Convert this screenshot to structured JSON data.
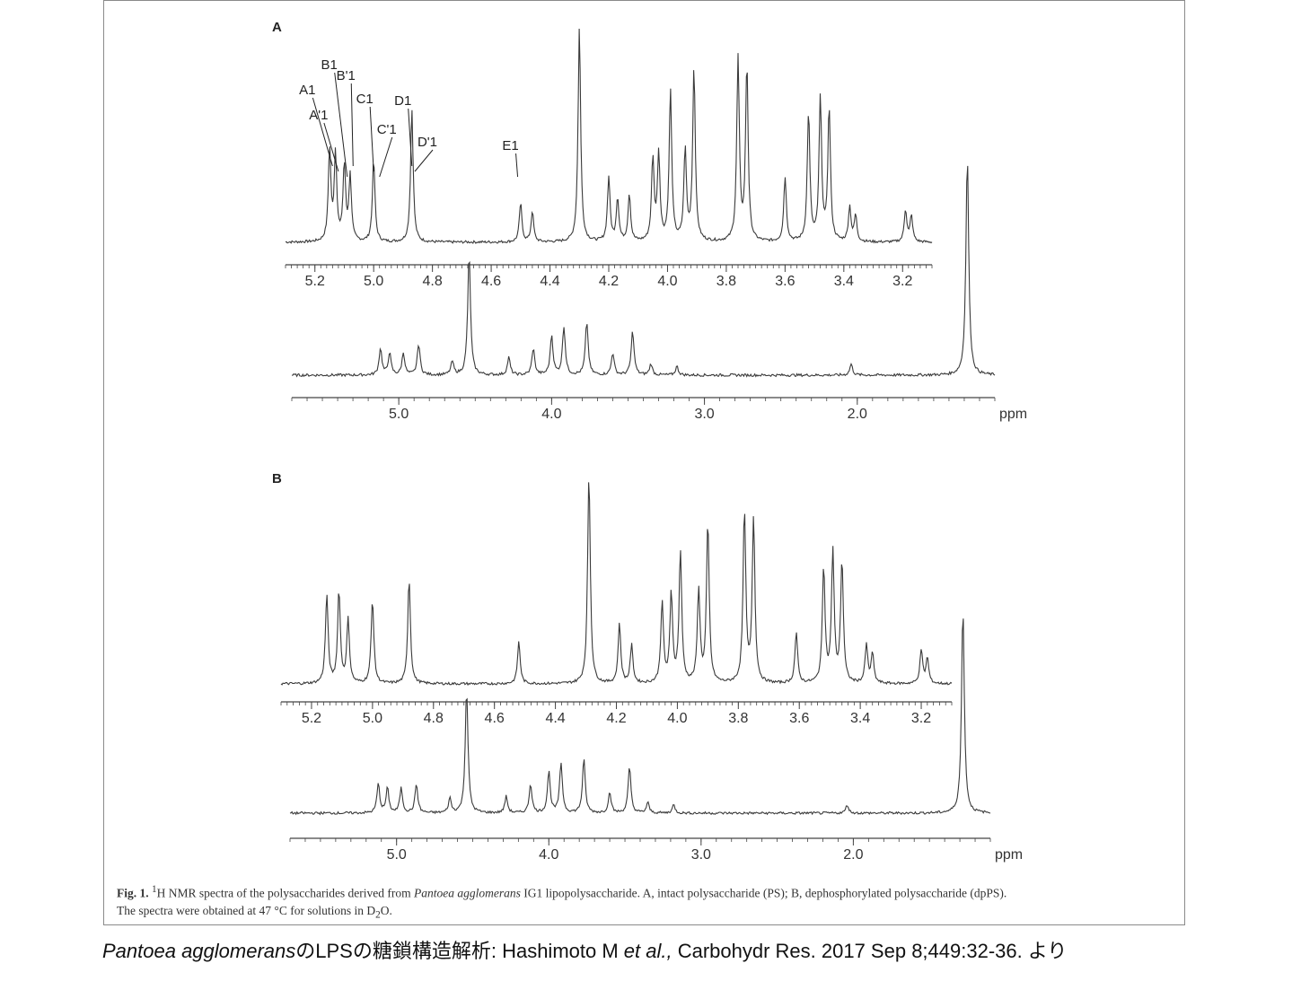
{
  "figure": {
    "panels": [
      {
        "letter": "A",
        "expanded": {
          "ticks": [
            "5.2",
            "5.0",
            "4.8",
            "4.6",
            "4.4",
            "4.2",
            "4.0",
            "3.8",
            "3.6",
            "3.4",
            "3.2"
          ],
          "xlim": [
            5.3,
            3.1
          ],
          "peak_labels": [
            {
              "label": "A1",
              "ppm": 5.14
            },
            {
              "label": "A'1",
              "ppm": 5.12
            },
            {
              "label": "B1",
              "ppm": 5.09
            },
            {
              "label": "B'1",
              "ppm": 5.07
            },
            {
              "label": "C1",
              "ppm": 5.0
            },
            {
              "label": "C'1",
              "ppm": 4.98
            },
            {
              "label": "D1",
              "ppm": 4.87
            },
            {
              "label": "D'1",
              "ppm": 4.86
            },
            {
              "label": "E1",
              "ppm": 4.51
            }
          ]
        },
        "full": {
          "ticks": [
            "5.0",
            "4.0",
            "3.0",
            "2.0"
          ],
          "unit": "ppm",
          "xlim": [
            5.7,
            1.1
          ]
        }
      },
      {
        "letter": "B",
        "expanded": {
          "ticks": [
            "5.2",
            "5.0",
            "4.8",
            "4.6",
            "4.4",
            "4.2",
            "4.0",
            "3.8",
            "3.6",
            "3.4",
            "3.2"
          ],
          "xlim": [
            5.3,
            3.1
          ],
          "peak_labels": []
        },
        "full": {
          "ticks": [
            "5.0",
            "4.0",
            "3.0",
            "2.0"
          ],
          "unit": "ppm",
          "xlim": [
            5.7,
            1.1
          ]
        }
      }
    ]
  },
  "chart_data": [
    {
      "type": "line",
      "panel": "A",
      "subplot": "expanded",
      "xlabel": "",
      "xlim": [
        5.3,
        3.1
      ],
      "peaks": [
        {
          "ppm": 5.15,
          "h": 0.42
        },
        {
          "ppm": 5.13,
          "h": 0.4
        },
        {
          "ppm": 5.1,
          "h": 0.35
        },
        {
          "ppm": 5.08,
          "h": 0.3
        },
        {
          "ppm": 5.0,
          "h": 0.38
        },
        {
          "ppm": 4.87,
          "h": 0.62
        },
        {
          "ppm": 4.5,
          "h": 0.18
        },
        {
          "ppm": 4.46,
          "h": 0.14
        },
        {
          "ppm": 4.3,
          "h": 1.0
        },
        {
          "ppm": 4.2,
          "h": 0.3
        },
        {
          "ppm": 4.17,
          "h": 0.2
        },
        {
          "ppm": 4.13,
          "h": 0.22
        },
        {
          "ppm": 4.05,
          "h": 0.38
        },
        {
          "ppm": 4.03,
          "h": 0.4
        },
        {
          "ppm": 3.99,
          "h": 0.7
        },
        {
          "ppm": 3.94,
          "h": 0.42
        },
        {
          "ppm": 3.91,
          "h": 0.8
        },
        {
          "ppm": 3.76,
          "h": 0.85
        },
        {
          "ppm": 3.73,
          "h": 0.82
        },
        {
          "ppm": 3.6,
          "h": 0.3
        },
        {
          "ppm": 3.52,
          "h": 0.6
        },
        {
          "ppm": 3.48,
          "h": 0.66
        },
        {
          "ppm": 3.45,
          "h": 0.62
        },
        {
          "ppm": 3.38,
          "h": 0.16
        },
        {
          "ppm": 3.36,
          "h": 0.12
        },
        {
          "ppm": 3.19,
          "h": 0.15
        },
        {
          "ppm": 3.17,
          "h": 0.12
        }
      ]
    },
    {
      "type": "line",
      "panel": "A",
      "subplot": "full",
      "xlabel": "ppm",
      "xlim": [
        5.7,
        1.1
      ],
      "peaks": [
        {
          "ppm": 5.12,
          "h": 0.12
        },
        {
          "ppm": 5.06,
          "h": 0.1
        },
        {
          "ppm": 4.97,
          "h": 0.1
        },
        {
          "ppm": 4.87,
          "h": 0.14
        },
        {
          "ppm": 4.65,
          "h": 0.06
        },
        {
          "ppm": 4.54,
          "h": 0.55
        },
        {
          "ppm": 4.28,
          "h": 0.08
        },
        {
          "ppm": 4.12,
          "h": 0.12
        },
        {
          "ppm": 4.0,
          "h": 0.18
        },
        {
          "ppm": 3.92,
          "h": 0.22
        },
        {
          "ppm": 3.77,
          "h": 0.24
        },
        {
          "ppm": 3.6,
          "h": 0.1
        },
        {
          "ppm": 3.47,
          "h": 0.2
        },
        {
          "ppm": 3.35,
          "h": 0.05
        },
        {
          "ppm": 3.18,
          "h": 0.04
        },
        {
          "ppm": 2.04,
          "h": 0.05
        },
        {
          "ppm": 1.28,
          "h": 1.0
        }
      ]
    },
    {
      "type": "line",
      "panel": "B",
      "subplot": "expanded",
      "xlabel": "",
      "xlim": [
        5.3,
        3.1
      ],
      "peaks": [
        {
          "ppm": 5.15,
          "h": 0.42
        },
        {
          "ppm": 5.11,
          "h": 0.44
        },
        {
          "ppm": 5.08,
          "h": 0.3
        },
        {
          "ppm": 5.0,
          "h": 0.4
        },
        {
          "ppm": 4.88,
          "h": 0.5
        },
        {
          "ppm": 4.52,
          "h": 0.2
        },
        {
          "ppm": 4.29,
          "h": 1.0
        },
        {
          "ppm": 4.19,
          "h": 0.28
        },
        {
          "ppm": 4.15,
          "h": 0.18
        },
        {
          "ppm": 4.05,
          "h": 0.38
        },
        {
          "ppm": 4.02,
          "h": 0.42
        },
        {
          "ppm": 3.99,
          "h": 0.62
        },
        {
          "ppm": 3.93,
          "h": 0.44
        },
        {
          "ppm": 3.9,
          "h": 0.76
        },
        {
          "ppm": 3.78,
          "h": 0.82
        },
        {
          "ppm": 3.75,
          "h": 0.78
        },
        {
          "ppm": 3.61,
          "h": 0.24
        },
        {
          "ppm": 3.52,
          "h": 0.55
        },
        {
          "ppm": 3.49,
          "h": 0.62
        },
        {
          "ppm": 3.46,
          "h": 0.58
        },
        {
          "ppm": 3.38,
          "h": 0.18
        },
        {
          "ppm": 3.36,
          "h": 0.14
        },
        {
          "ppm": 3.2,
          "h": 0.16
        },
        {
          "ppm": 3.18,
          "h": 0.12
        }
      ]
    },
    {
      "type": "line",
      "panel": "B",
      "subplot": "full",
      "xlabel": "ppm",
      "xlim": [
        5.7,
        1.1
      ],
      "peaks": [
        {
          "ppm": 5.12,
          "h": 0.14
        },
        {
          "ppm": 5.06,
          "h": 0.12
        },
        {
          "ppm": 4.97,
          "h": 0.12
        },
        {
          "ppm": 4.87,
          "h": 0.14
        },
        {
          "ppm": 4.65,
          "h": 0.07
        },
        {
          "ppm": 4.54,
          "h": 0.6
        },
        {
          "ppm": 4.28,
          "h": 0.08
        },
        {
          "ppm": 4.12,
          "h": 0.14
        },
        {
          "ppm": 4.0,
          "h": 0.2
        },
        {
          "ppm": 3.92,
          "h": 0.24
        },
        {
          "ppm": 3.77,
          "h": 0.26
        },
        {
          "ppm": 3.6,
          "h": 0.1
        },
        {
          "ppm": 3.47,
          "h": 0.22
        },
        {
          "ppm": 3.35,
          "h": 0.05
        },
        {
          "ppm": 3.18,
          "h": 0.04
        },
        {
          "ppm": 2.04,
          "h": 0.04
        },
        {
          "ppm": 1.28,
          "h": 1.0
        }
      ]
    }
  ],
  "caption": {
    "fig_label": "Fig. 1.",
    "superscript": "1",
    "text_1": "H NMR spectra of the polysaccharides derived from ",
    "species": "Pantoea agglomerans",
    "text_2": " IG1 lipopolysaccharide. A, intact polysaccharide (PS); B, dephosphorylated polysaccharide (dpPS).",
    "text_3": "The spectra were obtained at 47 °C for solutions in D",
    "subscript": "2",
    "text_4": "O."
  },
  "citation": {
    "species": "Pantoea agglomerans",
    "part_1": "のLPSの糖鎖構造解析: Hashimoto M ",
    "etal": "et al.,",
    "part_2": " Carbohydr Res. 2017 Sep 8;449:32-36.   より"
  },
  "colors": {
    "trace": "#3a3a3a",
    "axis": "#444444",
    "frame": "#8a8a8a"
  }
}
